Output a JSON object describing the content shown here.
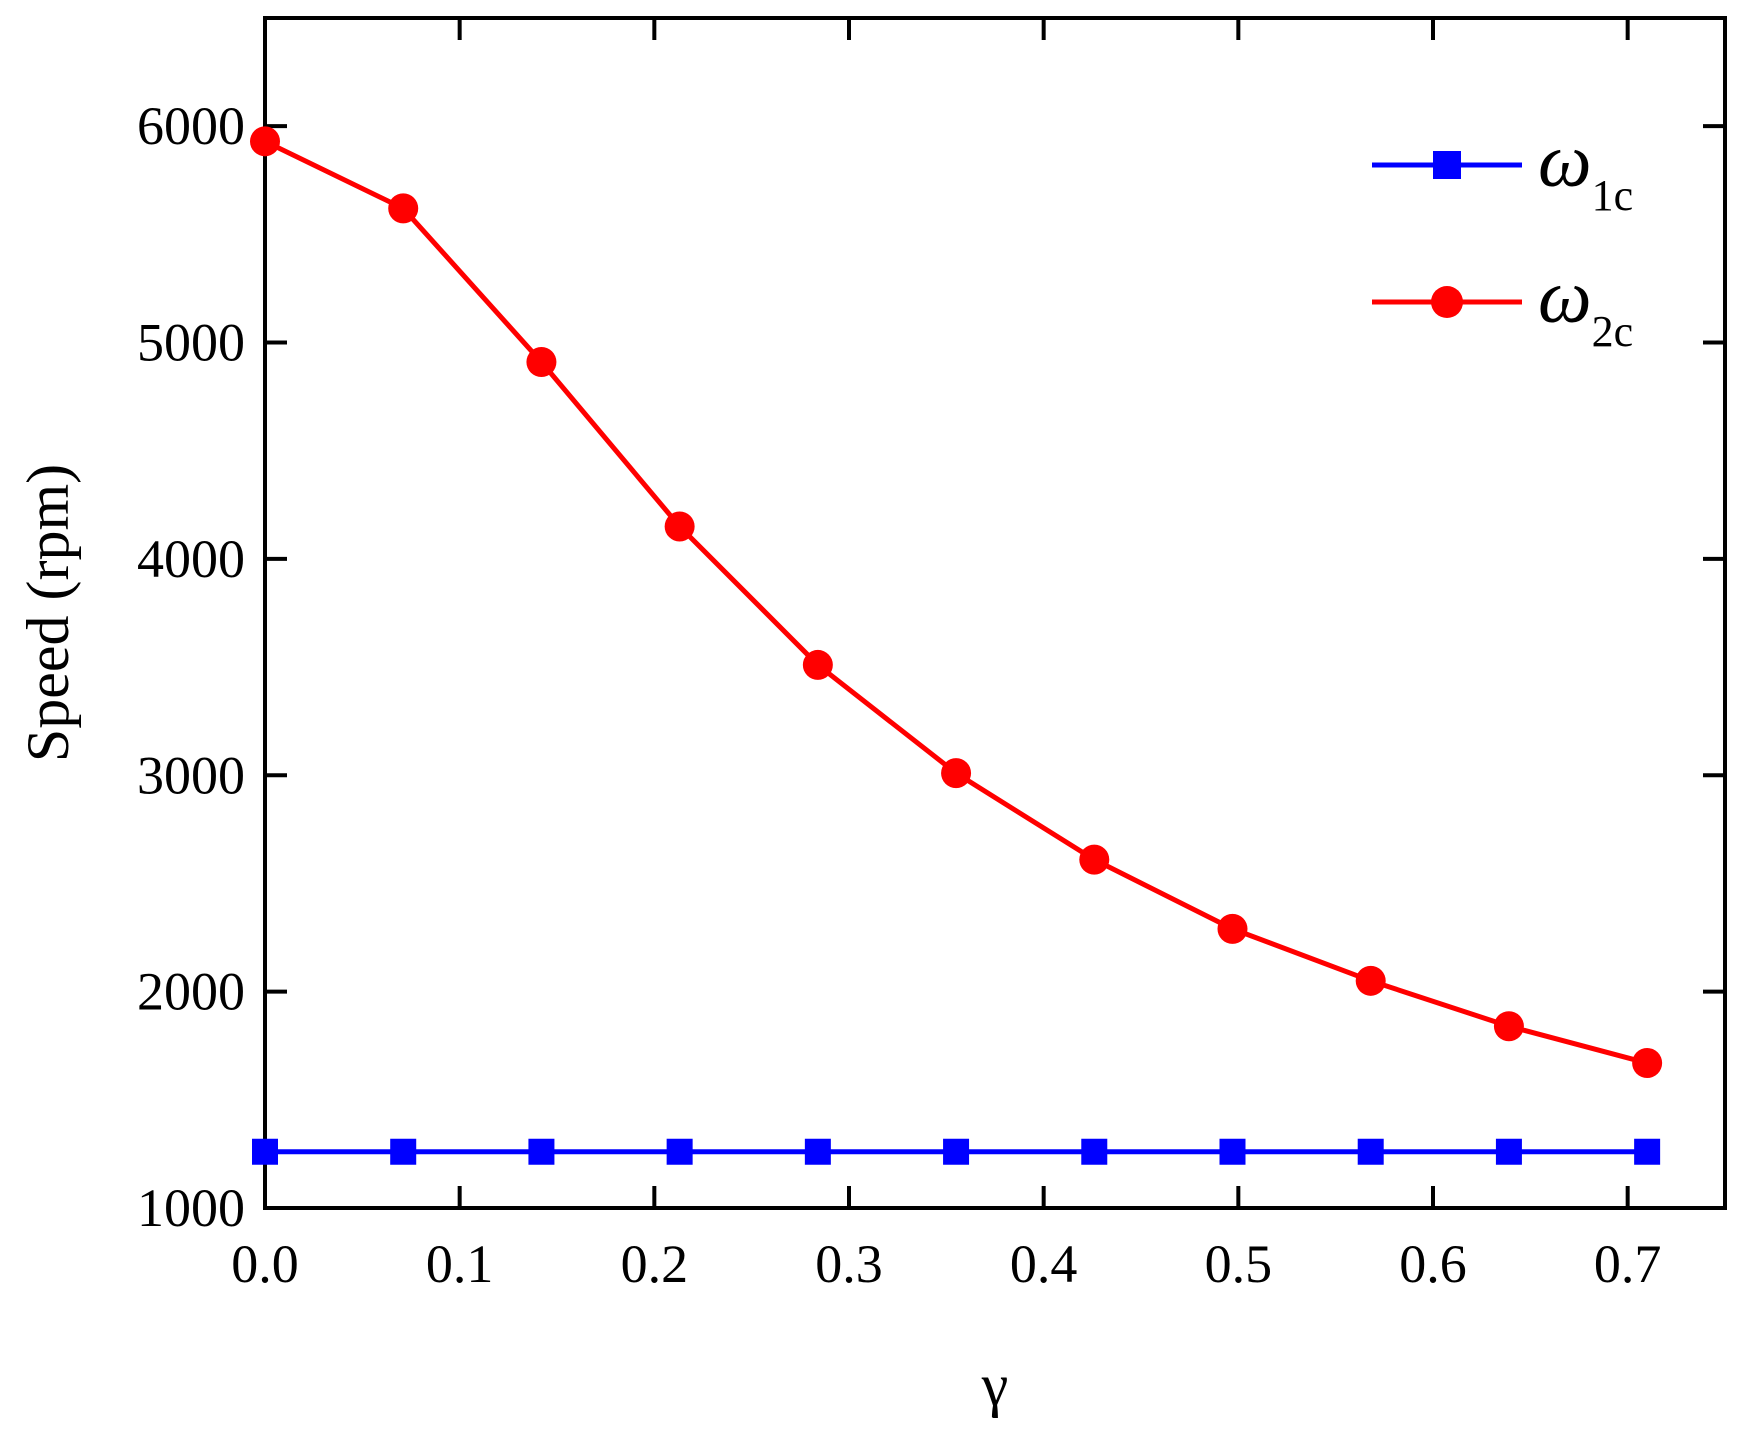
{
  "chart_data": {
    "type": "line",
    "xlabel": "γ",
    "ylabel": "Speed (rpm)",
    "xlim": [
      0.0,
      0.75
    ],
    "ylim": [
      1000,
      6500
    ],
    "xticks": [
      0.0,
      0.1,
      0.2,
      0.3,
      0.4,
      0.5,
      0.6,
      0.7
    ],
    "xtick_labels": [
      "0.0",
      "0.1",
      "0.2",
      "0.3",
      "0.4",
      "0.5",
      "0.6",
      "0.7"
    ],
    "yticks": [
      1000,
      2000,
      3000,
      4000,
      5000,
      6000
    ],
    "ytick_labels": [
      "1000",
      "2000",
      "3000",
      "4000",
      "5000",
      "6000"
    ],
    "grid": false,
    "legend_position": "top-right",
    "x": [
      0.0,
      0.071,
      0.142,
      0.213,
      0.284,
      0.355,
      0.426,
      0.497,
      0.568,
      0.639,
      0.71
    ],
    "series": [
      {
        "name": "ω",
        "name_subscript": "1c",
        "color": "#0000ff",
        "marker": "square",
        "values": [
          1260,
          1260,
          1260,
          1260,
          1260,
          1260,
          1260,
          1260,
          1260,
          1260,
          1260
        ]
      },
      {
        "name": "ω",
        "name_subscript": "2c",
        "color": "#ff0000",
        "marker": "circle",
        "values": [
          5930,
          5620,
          4910,
          4150,
          3510,
          3010,
          2610,
          2290,
          2050,
          1840,
          1670
        ]
      }
    ]
  }
}
